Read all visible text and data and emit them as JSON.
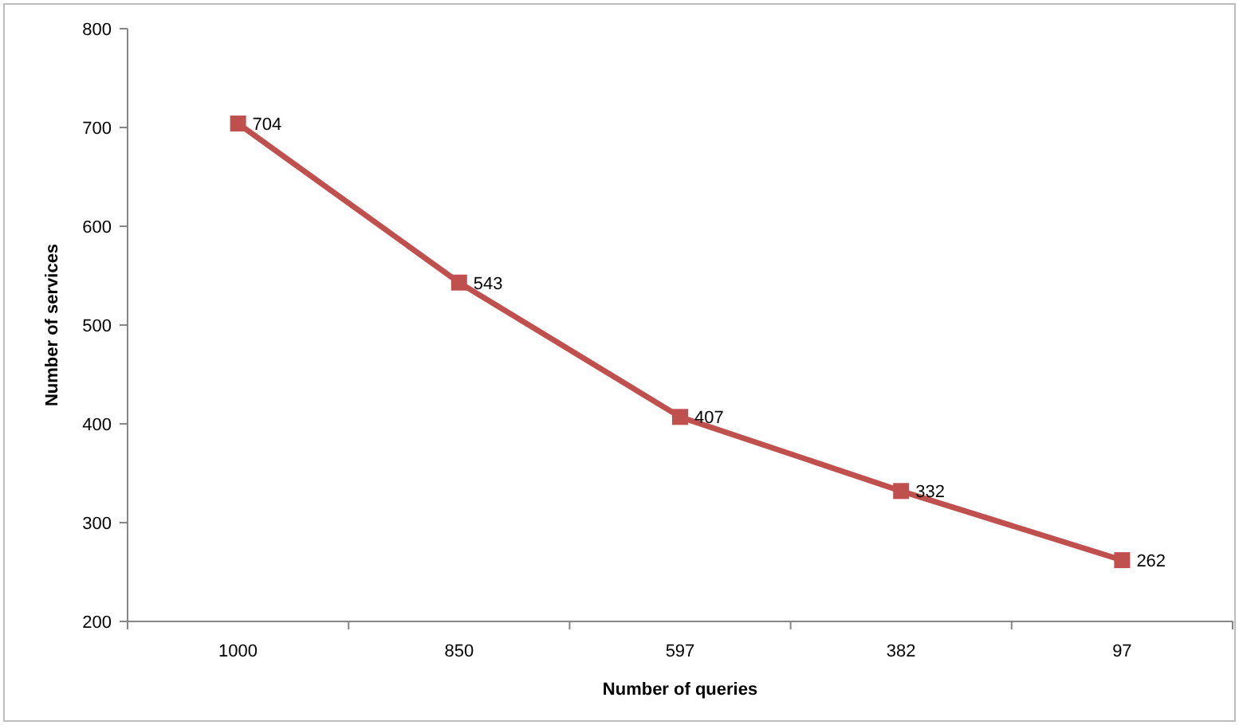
{
  "chart_data": {
    "type": "line",
    "xlabel": "Number of queries",
    "ylabel": "Number of services",
    "categories": [
      "1000",
      "850",
      "597",
      "382",
      "97"
    ],
    "series": [
      {
        "color": "#c0504d",
        "values": [
          704,
          543,
          407,
          332,
          262
        ]
      }
    ],
    "ylim": [
      200,
      800
    ],
    "yticks": [
      200,
      300,
      400,
      500,
      600,
      700,
      800
    ],
    "grid": false,
    "marker": "square",
    "line_style": "solid",
    "data_labels": true
  }
}
